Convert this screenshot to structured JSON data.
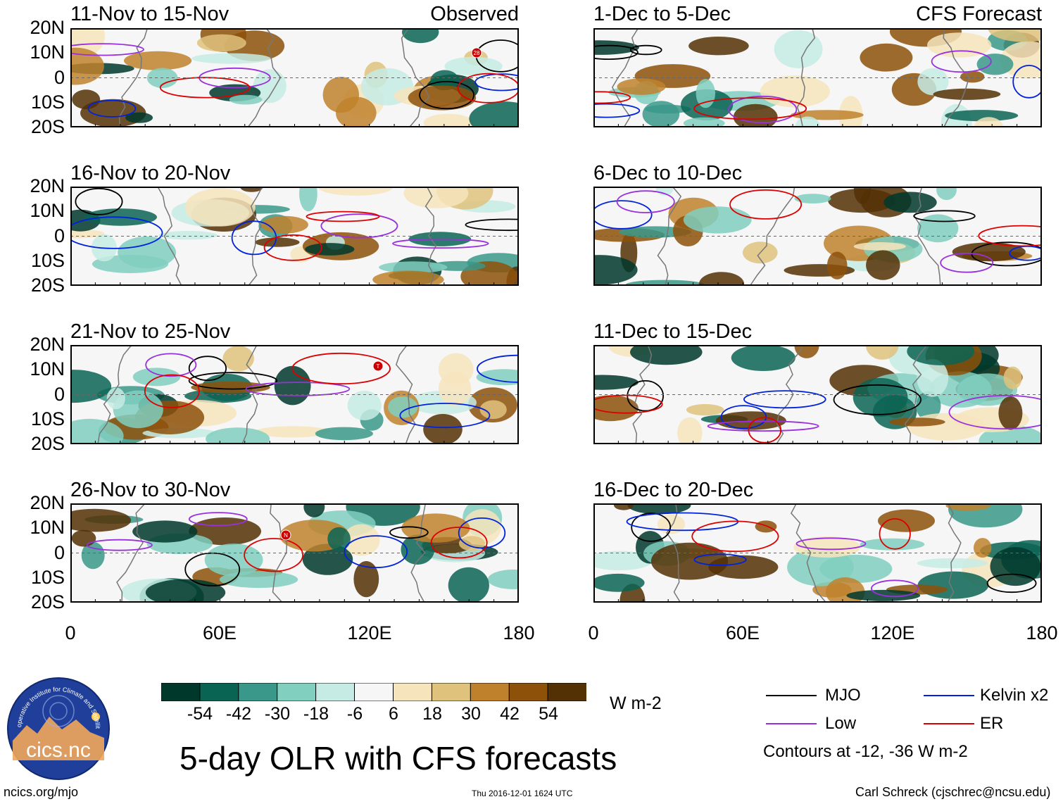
{
  "panels_left": [
    {
      "title": "11-Nov to 15-Nov",
      "tag": "Observed"
    },
    {
      "title": "16-Nov to 20-Nov",
      "tag": ""
    },
    {
      "title": "21-Nov to 25-Nov",
      "tag": ""
    },
    {
      "title": "26-Nov to 30-Nov",
      "tag": ""
    }
  ],
  "panels_right": [
    {
      "title": "1-Dec to 5-Dec",
      "tag": "CFS Forecast"
    },
    {
      "title": "6-Dec to 10-Dec",
      "tag": ""
    },
    {
      "title": "11-Dec to 15-Dec",
      "tag": ""
    },
    {
      "title": "16-Dec to 20-Dec",
      "tag": ""
    }
  ],
  "lat_labels": [
    "20N",
    "10N",
    "0",
    "10S",
    "20S"
  ],
  "lon_labels": [
    "0",
    "60E",
    "120E",
    "180"
  ],
  "storm_markers": [
    "28",
    "T",
    "N"
  ],
  "colorbar": {
    "colors": [
      "#00382b",
      "#0a6454",
      "#3a988a",
      "#80cfbf",
      "#c5ebe4",
      "#f6f6f6",
      "#f6e4bc",
      "#dfc27c",
      "#bf812c",
      "#8d510a",
      "#543005"
    ],
    "labels": [
      "-54",
      "-42",
      "-30",
      "-18",
      "-6",
      "6",
      "18",
      "30",
      "42",
      "54"
    ],
    "units": "W m-2"
  },
  "legend": {
    "items": [
      {
        "label": "MJO",
        "color": "#000000"
      },
      {
        "label": "Kelvin x2",
        "color": "#0022dd"
      },
      {
        "label": "Low",
        "color": "#9a30dd"
      },
      {
        "label": "ER",
        "color": "#dd0000"
      }
    ],
    "contours_note": "Contours at -12, -36 W m-2"
  },
  "logo_text": "cics.nc",
  "logo_arc_text": "Cooperative Institute for Climate and Satellites",
  "main_title": "5-day OLR with CFS forecasts",
  "footer": {
    "url": "ncics.org/mjo",
    "timestamp": "Thu 2016-12-01 1624 UTC",
    "credit": "Carl Schreck (cjschrec@ncsu.edu)"
  }
}
